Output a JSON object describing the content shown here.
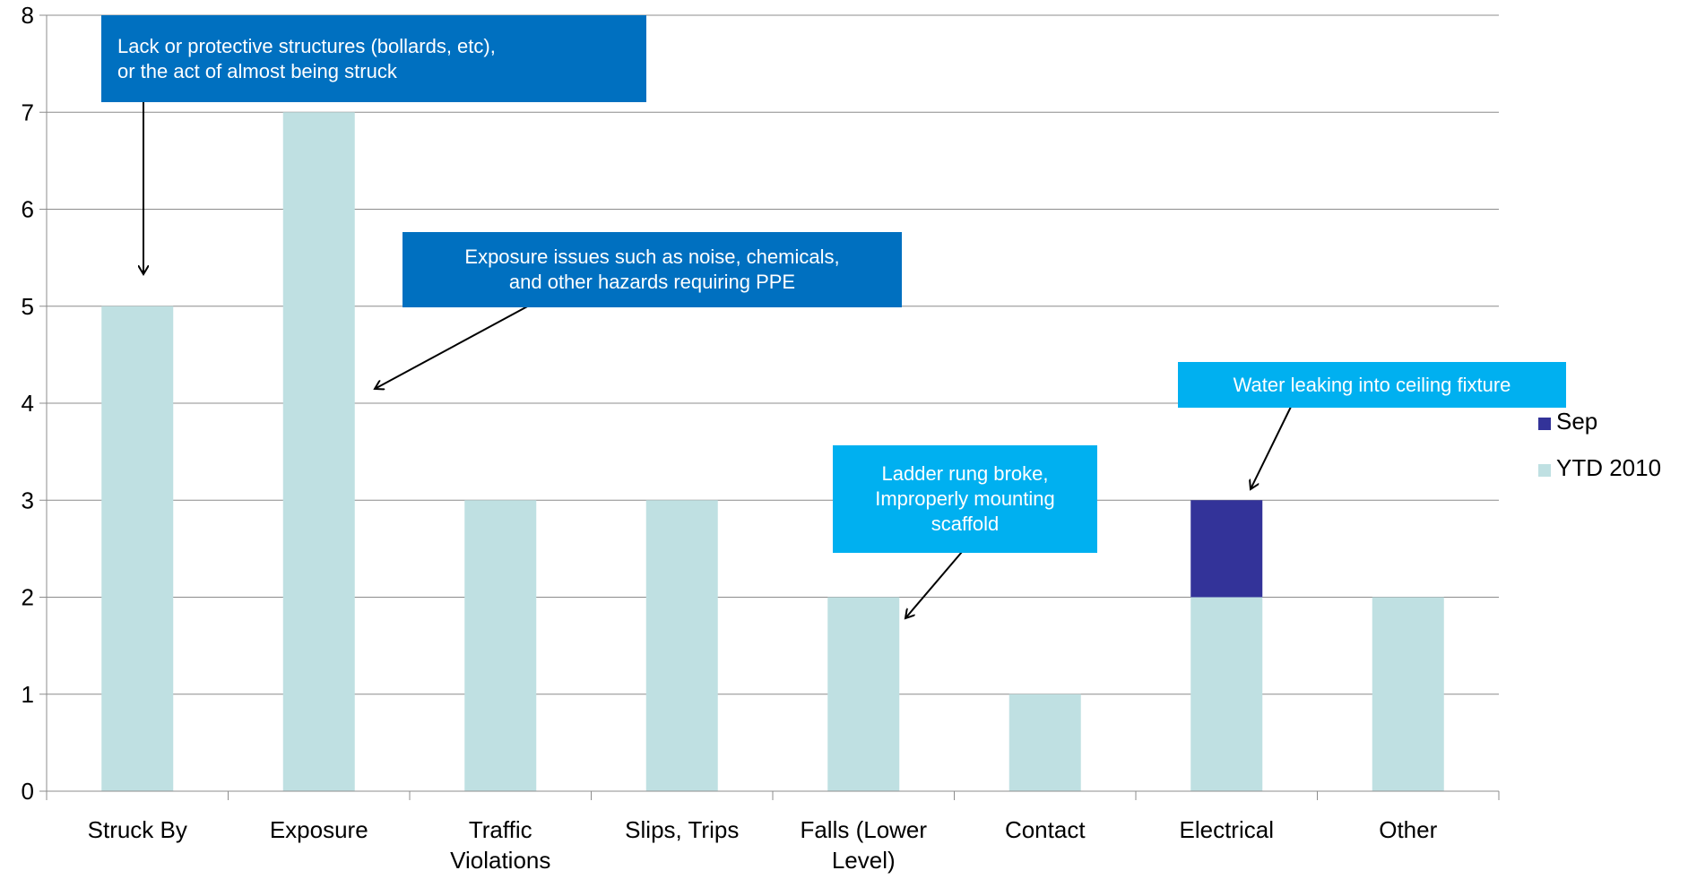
{
  "chart_data": {
    "type": "bar",
    "stacked": true,
    "categories": [
      [
        "Struck By"
      ],
      [
        "Exposure"
      ],
      [
        "Traffic",
        "Violations"
      ],
      [
        "Slips, Trips"
      ],
      [
        "Falls (Lower",
        "Level)"
      ],
      [
        "Contact"
      ],
      [
        "Electrical"
      ],
      [
        "Other"
      ]
    ],
    "series": [
      {
        "name": "YTD 2010",
        "color": "#bfe0e2",
        "values": [
          5,
          7,
          3,
          3,
          2,
          1,
          2,
          2
        ]
      },
      {
        "name": "Sep",
        "color": "#333399",
        "values": [
          0,
          0,
          0,
          0,
          0,
          0,
          1,
          0
        ]
      }
    ],
    "ylim": [
      0,
      8
    ],
    "yticks": [
      "0",
      "1",
      "2",
      "3",
      "4",
      "5",
      "6",
      "7",
      "8"
    ],
    "grid": true,
    "legend_position": "right",
    "title": "",
    "xlabel": "",
    "ylabel": ""
  },
  "annotations": [
    {
      "text": "Lack or protective structures (bollards, etc),\nor the act of almost being struck",
      "color": "#0070c0",
      "points_to": "Struck By"
    },
    {
      "text": "Exposure issues such as noise, chemicals,\nand other hazards requiring PPE",
      "color": "#0070c0",
      "points_to": "Exposure"
    },
    {
      "text": "Ladder rung broke,\nImproperly mounting\nscaffold",
      "color": "#00b0f0",
      "points_to": "Falls (Lower Level)"
    },
    {
      "text": "Water leaking into ceiling fixture",
      "color": "#00b0f0",
      "points_to": "Electrical"
    }
  ]
}
